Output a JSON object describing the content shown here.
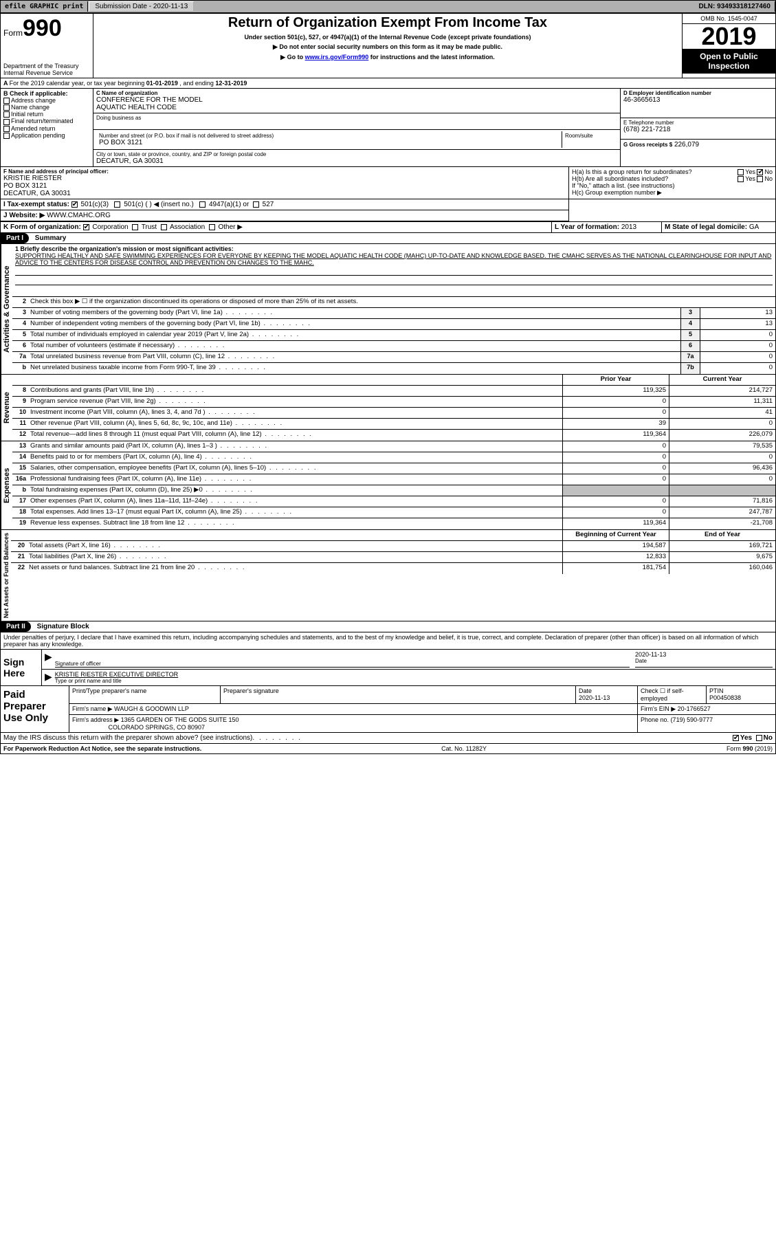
{
  "top": {
    "efile": "efile GRAPHIC print",
    "submission_label": "Submission Date - 2020-11-13",
    "dln_label": "DLN: 93493318127460"
  },
  "header": {
    "form_word": "Form",
    "form_no": "990",
    "dept1": "Department of the Treasury",
    "dept2": "Internal Revenue Service",
    "title": "Return of Organization Exempt From Income Tax",
    "sub1": "Under section 501(c), 527, or 4947(a)(1) of the Internal Revenue Code (except private foundations)",
    "sub2": "▶ Do not enter social security numbers on this form as it may be made public.",
    "sub3_pre": "▶ Go to ",
    "sub3_link": "www.irs.gov/Form990",
    "sub3_post": " for instructions and the latest information.",
    "omb": "OMB No. 1545-0047",
    "year": "2019",
    "inspect": "Open to Public Inspection"
  },
  "period": {
    "pre": "For the 2019 calendar year, or tax year beginning ",
    "begin": "01-01-2019",
    "mid": " , and ending ",
    "end": "12-31-2019"
  },
  "boxB": {
    "title": "B Check if applicable:",
    "items": [
      "Address change",
      "Name change",
      "Initial return",
      "Final return/terminated",
      "Amended return",
      "Application pending"
    ]
  },
  "boxC": {
    "name_lbl": "C Name of organization",
    "name1": "CONFERENCE FOR THE MODEL",
    "name2": "AQUATIC HEALTH CODE",
    "dba_lbl": "Doing business as",
    "addr_lbl": "Number and street (or P.O. box if mail is not delivered to street address)",
    "room_lbl": "Room/suite",
    "addr": "PO BOX 3121",
    "city_lbl": "City or town, state or province, country, and ZIP or foreign postal code",
    "city": "DECATUR, GA  30031"
  },
  "boxD": {
    "lbl": "D Employer identification number",
    "val": "46-3665613"
  },
  "boxE": {
    "lbl": "E Telephone number",
    "val": "(678) 221-7218"
  },
  "boxG": {
    "lbl": "G Gross receipts $",
    "val": "226,079"
  },
  "boxF": {
    "lbl": "F Name and address of principal officer:",
    "l1": "KRISTIE RIESTER",
    "l2": "PO BOX 3121",
    "l3": "DECATUR, GA  30031"
  },
  "boxH": {
    "a_lbl": "H(a)  Is this a group return for subordinates?",
    "b_lbl": "H(b)  Are all subordinates included?",
    "b_note": "If \"No,\" attach a list. (see instructions)",
    "c_lbl": "H(c)  Group exemption number ▶",
    "yes": "Yes",
    "no": "No"
  },
  "boxI": {
    "lbl": "I   Tax-exempt status:",
    "o1": "501(c)(3)",
    "o2": "501(c) (  ) ◀ (insert no.)",
    "o3": "4947(a)(1) or",
    "o4": "527"
  },
  "boxJ": {
    "lbl": "J   Website: ▶",
    "val": "WWW.CMAHC.ORG"
  },
  "boxK": {
    "lbl": "K Form of organization:",
    "o1": "Corporation",
    "o2": "Trust",
    "o3": "Association",
    "o4": "Other ▶"
  },
  "boxL": {
    "lbl": "L Year of formation:",
    "val": "2013"
  },
  "boxM": {
    "lbl": "M State of legal domicile:",
    "val": "GA"
  },
  "part1": {
    "hdr": "Part I",
    "title": "Summary"
  },
  "summary": {
    "l1_lbl": "1  Briefly describe the organization's mission or most significant activities:",
    "l1_txt": "SUPPORTING HEALTHLY AND SAFE SWIMMING EXPERIENCES FOR EVERYONE BY KEEPING THE MODEL AQUATIC HEALTH CODE (MAHC) UP-TO-DATE AND KNOWLEDGE BASED. THE CMAHC SERVES AS THE NATIONAL CLEARINGHOUSE FOR INPUT AND ADVICE TO THE CENTERS FOR DISEASE CONTROL AND PREVENTION ON CHANGES TO THE MAHC.",
    "l2": "Check this box ▶ ☐  if the organization discontinued its operations or disposed of more than 25% of its net assets.",
    "lines_ag": [
      {
        "n": "3",
        "t": "Number of voting members of the governing body (Part VI, line 1a)",
        "box": "3",
        "v": "13"
      },
      {
        "n": "4",
        "t": "Number of independent voting members of the governing body (Part VI, line 1b)",
        "box": "4",
        "v": "13"
      },
      {
        "n": "5",
        "t": "Total number of individuals employed in calendar year 2019 (Part V, line 2a)",
        "box": "5",
        "v": "0"
      },
      {
        "n": "6",
        "t": "Total number of volunteers (estimate if necessary)",
        "box": "6",
        "v": "0"
      },
      {
        "n": "7a",
        "t": "Total unrelated business revenue from Part VIII, column (C), line 12",
        "box": "7a",
        "v": "0"
      },
      {
        "n": "b",
        "t": "Net unrelated business taxable income from Form 990-T, line 39",
        "box": "7b",
        "v": "0"
      }
    ],
    "col_prior": "Prior Year",
    "col_curr": "Current Year",
    "rev": [
      {
        "n": "8",
        "t": "Contributions and grants (Part VIII, line 1h)",
        "p": "119,325",
        "c": "214,727"
      },
      {
        "n": "9",
        "t": "Program service revenue (Part VIII, line 2g)",
        "p": "0",
        "c": "11,311"
      },
      {
        "n": "10",
        "t": "Investment income (Part VIII, column (A), lines 3, 4, and 7d )",
        "p": "0",
        "c": "41"
      },
      {
        "n": "11",
        "t": "Other revenue (Part VIII, column (A), lines 5, 6d, 8c, 9c, 10c, and 11e)",
        "p": "39",
        "c": "0"
      },
      {
        "n": "12",
        "t": "Total revenue—add lines 8 through 11 (must equal Part VIII, column (A), line 12)",
        "p": "119,364",
        "c": "226,079"
      }
    ],
    "exp": [
      {
        "n": "13",
        "t": "Grants and similar amounts paid (Part IX, column (A), lines 1–3 )",
        "p": "0",
        "c": "79,535"
      },
      {
        "n": "14",
        "t": "Benefits paid to or for members (Part IX, column (A), line 4)",
        "p": "0",
        "c": "0"
      },
      {
        "n": "15",
        "t": "Salaries, other compensation, employee benefits (Part IX, column (A), lines 5–10)",
        "p": "0",
        "c": "96,436"
      },
      {
        "n": "16a",
        "t": "Professional fundraising fees (Part IX, column (A), line 11e)",
        "p": "0",
        "c": "0"
      },
      {
        "n": "b",
        "t": "Total fundraising expenses (Part IX, column (D), line 25) ▶0",
        "p": "",
        "c": "",
        "shade": true
      },
      {
        "n": "17",
        "t": "Other expenses (Part IX, column (A), lines 11a–11d, 11f–24e)",
        "p": "0",
        "c": "71,816"
      },
      {
        "n": "18",
        "t": "Total expenses. Add lines 13–17 (must equal Part IX, column (A), line 25)",
        "p": "0",
        "c": "247,787"
      },
      {
        "n": "19",
        "t": "Revenue less expenses. Subtract line 18 from line 12",
        "p": "119,364",
        "c": "-21,708"
      }
    ],
    "col_boy": "Beginning of Current Year",
    "col_eoy": "End of Year",
    "na": [
      {
        "n": "20",
        "t": "Total assets (Part X, line 16)",
        "p": "194,587",
        "c": "169,721"
      },
      {
        "n": "21",
        "t": "Total liabilities (Part X, line 26)",
        "p": "12,833",
        "c": "9,675"
      },
      {
        "n": "22",
        "t": "Net assets or fund balances. Subtract line 21 from line 20",
        "p": "181,754",
        "c": "160,046"
      }
    ]
  },
  "vtabs": {
    "ag": "Activities & Governance",
    "rev": "Revenue",
    "exp": "Expenses",
    "na": "Net Assets or Fund Balances"
  },
  "part2": {
    "hdr": "Part II",
    "title": "Signature Block"
  },
  "sig": {
    "decl": "Under penalties of perjury, I declare that I have examined this return, including accompanying schedules and statements, and to the best of my knowledge and belief, it is true, correct, and complete. Declaration of preparer (other than officer) is based on all information of which preparer has any knowledge.",
    "sign_here": "Sign Here",
    "sig_officer": "Signature of officer",
    "date": "Date",
    "date_val": "2020-11-13",
    "name_title": "KRISTIE RIESTER  EXECUTIVE DIRECTOR",
    "name_lbl": "Type or print name and title"
  },
  "prep": {
    "title": "Paid Preparer Use Only",
    "h1": "Print/Type preparer's name",
    "h2": "Preparer's signature",
    "h3": "Date",
    "h3v": "2020-11-13",
    "h4": "Check ☐ if self-employed",
    "h5": "PTIN",
    "h5v": "P00450838",
    "firm_lbl": "Firm's name    ▶",
    "firm": "WAUGH & GOODWIN LLP",
    "ein_lbl": "Firm's EIN ▶",
    "ein": "20-1766527",
    "addr_lbl": "Firm's address ▶",
    "addr1": "1365 GARDEN OF THE GODS SUITE 150",
    "addr2": "COLORADO SPRINGS, CO  80907",
    "phone_lbl": "Phone no.",
    "phone": "(719) 590-9777"
  },
  "discuss": {
    "q": "May the IRS discuss this return with the preparer shown above? (see instructions)",
    "yes": "Yes",
    "no": "No"
  },
  "footer": {
    "l": "For Paperwork Reduction Act Notice, see the separate instructions.",
    "c": "Cat. No. 11282Y",
    "r": "Form 990 (2019)"
  }
}
